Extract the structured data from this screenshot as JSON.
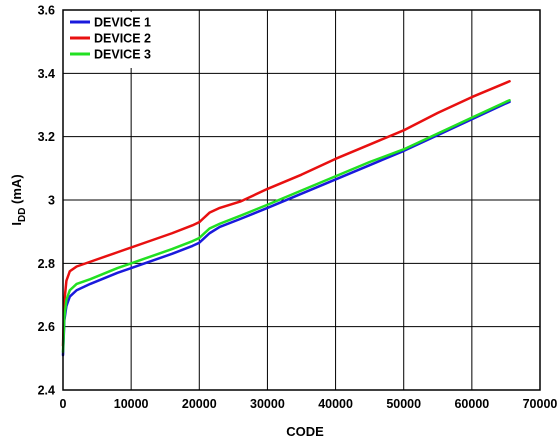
{
  "chart_data": {
    "type": "line",
    "xlabel": "CODE",
    "ylabel_main": "I",
    "ylabel_sub": "DD",
    "ylabel_unit": " (mA)",
    "xlim": [
      0,
      70000
    ],
    "ylim": [
      2.4,
      3.6
    ],
    "x_ticks": [
      0,
      10000,
      20000,
      30000,
      40000,
      50000,
      60000,
      70000
    ],
    "x_tick_labels": [
      "0",
      "10000",
      "20000",
      "30000",
      "40000",
      "50000",
      "60000",
      "70000"
    ],
    "y_ticks": [
      2.4,
      2.6,
      2.8,
      3.0,
      3.2,
      3.4,
      3.6
    ],
    "y_tick_labels": [
      "2.4",
      "2.6",
      "2.8",
      "3",
      "3.2",
      "3.4",
      "3.6"
    ],
    "grid": true,
    "legend_position": "top-left",
    "series": [
      {
        "name": "DEVICE 1",
        "color": "#1a1adc",
        "x": [
          0,
          200,
          500,
          1000,
          2000,
          4000,
          8000,
          12000,
          16000,
          19000,
          20000,
          20500,
          21500,
          23000,
          26000,
          30000,
          35000,
          40000,
          45000,
          50000,
          55000,
          60000,
          65000,
          65536
        ],
        "y": [
          2.51,
          2.62,
          2.665,
          2.695,
          2.715,
          2.735,
          2.77,
          2.8,
          2.83,
          2.855,
          2.865,
          2.875,
          2.895,
          2.915,
          2.94,
          2.975,
          3.02,
          3.065,
          3.11,
          3.155,
          3.205,
          3.255,
          3.305,
          3.31
        ]
      },
      {
        "name": "DEVICE 2",
        "color": "#e81010",
        "x": [
          0,
          200,
          500,
          1000,
          2000,
          4000,
          8000,
          12000,
          16000,
          19000,
          20000,
          20500,
          21500,
          23000,
          26000,
          30000,
          35000,
          40000,
          45000,
          50000,
          55000,
          60000,
          65000,
          65536
        ],
        "y": [
          2.54,
          2.68,
          2.745,
          2.775,
          2.79,
          2.805,
          2.835,
          2.865,
          2.895,
          2.92,
          2.93,
          2.94,
          2.96,
          2.975,
          2.995,
          3.035,
          3.08,
          3.13,
          3.175,
          3.22,
          3.275,
          3.325,
          3.37,
          3.375
        ]
      },
      {
        "name": "DEVICE 3",
        "color": "#22e022",
        "x": [
          0,
          200,
          500,
          1000,
          2000,
          4000,
          8000,
          12000,
          16000,
          19000,
          20000,
          20500,
          21500,
          23000,
          26000,
          30000,
          35000,
          40000,
          45000,
          50000,
          55000,
          60000,
          65000,
          65536
        ],
        "y": [
          2.52,
          2.63,
          2.685,
          2.715,
          2.735,
          2.75,
          2.785,
          2.815,
          2.845,
          2.87,
          2.88,
          2.89,
          2.91,
          2.925,
          2.95,
          2.985,
          3.03,
          3.075,
          3.12,
          3.16,
          3.21,
          3.26,
          3.31,
          3.315
        ]
      }
    ]
  }
}
